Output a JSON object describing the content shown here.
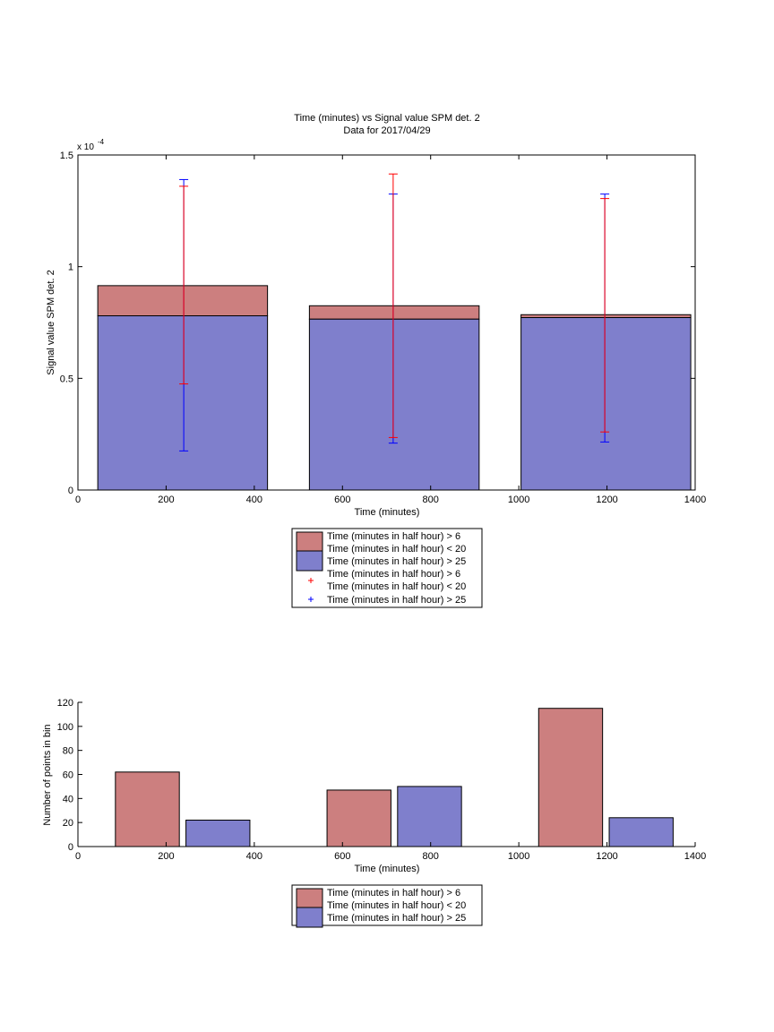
{
  "chart_data": [
    {
      "type": "bar",
      "title": "Time (minutes) vs Signal value SPM det. 2",
      "subtitle": "Data for 2017/04/29",
      "xlabel": "Time (minutes)",
      "ylabel": "Signal value SPM det. 2",
      "y_exponent_label": "x 10",
      "y_exponent_power": "-4",
      "xlim": [
        0,
        1400
      ],
      "ylim": [
        0,
        1.5
      ],
      "x_ticks": [
        0,
        200,
        400,
        600,
        800,
        1000,
        1200,
        1400
      ],
      "y_ticks": [
        0,
        0.5,
        1,
        1.5
      ],
      "y_tick_labels": [
        "0",
        "0.5",
        "1",
        "1.5"
      ],
      "stacked": true,
      "colors": {
        "series1": "#cc7f7f",
        "series2": "#7f7fcc",
        "err1": "#ff0000",
        "err2": "#0000ff"
      },
      "bars": [
        {
          "x_start": 45,
          "x_end": 430,
          "center": 240,
          "total": 0.915,
          "lower": 0.78
        },
        {
          "x_start": 525,
          "x_end": 910,
          "center": 715,
          "total": 0.825,
          "lower": 0.765
        },
        {
          "x_start": 1005,
          "x_end": 1390,
          "center": 1195,
          "total": 0.785,
          "lower": 0.772
        }
      ],
      "errorbars": {
        "series1": [
          {
            "x": 240,
            "low": 0.475,
            "high": 1.36
          },
          {
            "x": 715,
            "low": 0.235,
            "high": 1.415
          },
          {
            "x": 1195,
            "low": 0.26,
            "high": 1.305
          }
        ],
        "series2": [
          {
            "x": 240,
            "low": 0.175,
            "high": 1.39
          },
          {
            "x": 715,
            "low": 0.21,
            "high": 1.325
          },
          {
            "x": 1195,
            "low": 0.215,
            "high": 1.325
          }
        ]
      },
      "legend": {
        "placement": "below",
        "entries": [
          {
            "line1": "Time (minutes in half hour) > 6",
            "line2": "Time (minutes in half hour) < 20"
          },
          {
            "line1": "Time (minutes in half hour) > 25"
          },
          {
            "line1": "Time (minutes in half hour) > 6",
            "line2": "Time (minutes in half hour) < 20"
          },
          {
            "line1": "Time (minutes in half hour) > 25"
          }
        ]
      }
    },
    {
      "type": "bar",
      "xlabel": "Time (minutes)",
      "ylabel": "Number of points in bin",
      "xlim": [
        0,
        1400
      ],
      "ylim": [
        0,
        120
      ],
      "x_ticks": [
        0,
        200,
        400,
        600,
        800,
        1000,
        1200,
        1400
      ],
      "y_ticks": [
        0,
        20,
        40,
        60,
        80,
        100,
        120
      ],
      "bars": [
        {
          "x_start": 85,
          "x_end": 230,
          "value": 62,
          "series": 0
        },
        {
          "x_start": 245,
          "x_end": 390,
          "value": 22,
          "series": 1
        },
        {
          "x_start": 565,
          "x_end": 710,
          "value": 47,
          "series": 0
        },
        {
          "x_start": 725,
          "x_end": 870,
          "value": 50,
          "series": 1
        },
        {
          "x_start": 1045,
          "x_end": 1190,
          "value": 115,
          "series": 0
        },
        {
          "x_start": 1205,
          "x_end": 1350,
          "value": 24,
          "series": 1
        }
      ],
      "legend": {
        "placement": "below",
        "entries": [
          {
            "line1": "Time (minutes in half hour) > 6",
            "line2": "Time (minutes in half hour) < 20"
          },
          {
            "line1": "Time (minutes in half hour) > 25"
          }
        ]
      }
    }
  ]
}
